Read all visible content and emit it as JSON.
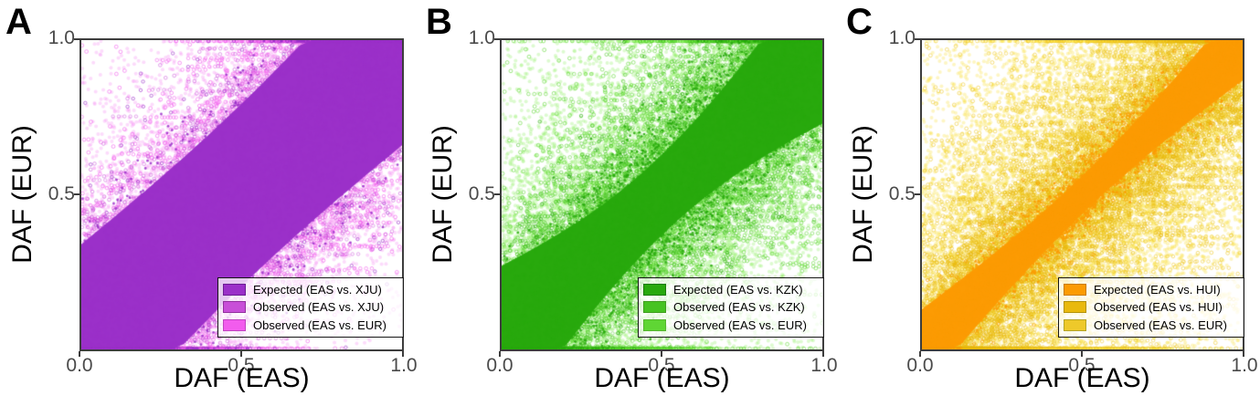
{
  "figure": {
    "background": "#ffffff"
  },
  "chart_data": [
    {
      "type": "scatter",
      "panel": "A",
      "xlabel": "DAF (EAS)",
      "ylabel": "DAF (EUR)",
      "xlim": [
        0,
        1
      ],
      "ylim": [
        0,
        1
      ],
      "xticks": [
        0.0,
        0.5,
        1.0
      ],
      "xticks_text": [
        "0.0",
        "0.5",
        "1.0"
      ],
      "yticks": [
        1.0,
        0.5
      ],
      "yticks_text": [
        "1.0",
        "0.5"
      ],
      "grid": false,
      "legend_position": "bottom-right",
      "series": [
        {
          "name": "Expected (EAS vs. XJU)",
          "style": "dense-diagonal-band",
          "color": "#9b30c9",
          "swatch_border": "#6b1d93",
          "band_halfwidth_corners": 0.34,
          "band_halfwidth_middle": 0.295,
          "edge_scatter_sigma": 0.17
        },
        {
          "name": "Observed (EAS vs. XJU)",
          "style": "open-circle-scatter",
          "color": "#c84fd8",
          "swatch_border": "#93309f",
          "relation": "y ~ x",
          "scatter_sigma": 0.2
        },
        {
          "name": "Observed (EAS vs. EUR)",
          "style": "open-circle-scatter",
          "color": "#f25ced",
          "swatch_border": "#c044c0",
          "relation": "y ~ x (diffuse)",
          "scatter_sigma": 0.26
        }
      ],
      "render": {
        "seed": 11,
        "wash_fill": "#f688f2",
        "wash_alpha": 0.3,
        "light_stroke": "#f25ced",
        "mid_stroke": "#c84fd8",
        "dark_fill": "#9b30c9",
        "sigma_light": 0.26,
        "sigma_mid": 0.2,
        "sigma_dark": 0.17,
        "uniform_frac_light": 0.07,
        "band_w_edge": 0.34,
        "band_w_mid": 0.295
      }
    },
    {
      "type": "scatter",
      "panel": "B",
      "xlabel": "DAF (EAS)",
      "ylabel": "DAF (EUR)",
      "xlim": [
        0,
        1
      ],
      "ylim": [
        0,
        1
      ],
      "xticks": [
        0.0,
        0.5,
        1.0
      ],
      "xticks_text": [
        "0.0",
        "0.5",
        "1.0"
      ],
      "yticks": [
        1.0,
        0.5
      ],
      "yticks_text": [
        "1.0",
        "0.5"
      ],
      "grid": false,
      "legend_position": "bottom-right",
      "series": [
        {
          "name": "Expected (EAS vs. KZK)",
          "style": "dense-diagonal-band",
          "color": "#28a90d",
          "swatch_border": "#1b7a08",
          "band_halfwidth_corners": 0.27,
          "band_halfwidth_middle": 0.13,
          "edge_scatter_sigma": 0.12
        },
        {
          "name": "Observed (EAS vs. KZK)",
          "style": "open-circle-scatter",
          "color": "#46c322",
          "swatch_border": "#3f9e1f",
          "relation": "y ~ x",
          "scatter_sigma": 0.18
        },
        {
          "name": "Observed (EAS vs. EUR)",
          "style": "open-circle-scatter",
          "color": "#5fd634",
          "swatch_border": "#55b52f",
          "relation": "y ~ x (diffuse)",
          "scatter_sigma": 0.3
        }
      ],
      "render": {
        "seed": 22,
        "wash_fill": "#8dee64",
        "wash_alpha": 0.3,
        "light_stroke": "#5fd634",
        "mid_stroke": "#46c322",
        "dark_fill": "#28a90d",
        "sigma_light": 0.3,
        "sigma_mid": 0.18,
        "sigma_dark": 0.12,
        "uniform_frac_light": 0.1,
        "band_w_edge": 0.27,
        "band_w_mid": 0.13
      }
    },
    {
      "type": "scatter",
      "panel": "C",
      "xlabel": "DAF (EAS)",
      "ylabel": "DAF (EUR)",
      "xlim": [
        0,
        1
      ],
      "ylim": [
        0,
        1
      ],
      "xticks": [
        0.0,
        0.5,
        1.0
      ],
      "xticks_text": [
        "0.0",
        "0.5",
        "1.0"
      ],
      "yticks": [
        1.0,
        0.5
      ],
      "yticks_text": [
        "1.0",
        "0.5"
      ],
      "grid": false,
      "legend_position": "bottom-right",
      "series": [
        {
          "name": "Expected (EAS vs. HUI)",
          "style": "dense-diagonal-band",
          "color": "#fc9b03",
          "swatch_border": "#c97c02",
          "band_halfwidth_corners": 0.13,
          "band_halfwidth_middle": 0.062,
          "edge_scatter_sigma": 0.05
        },
        {
          "name": "Observed (EAS vs. HUI)",
          "style": "open-circle-scatter",
          "color": "#e9b90d",
          "swatch_border": "#b3920a",
          "relation": "y ~ x",
          "scatter_sigma": 0.13
        },
        {
          "name": "Observed (EAS vs. EUR)",
          "style": "open-circle-scatter",
          "color": "#eec92a",
          "swatch_border": "#b3a428",
          "relation": "y ~ x (diffuse)",
          "scatter_sigma": 0.34
        }
      ],
      "render": {
        "seed": 33,
        "wash_fill": "#f8e24a",
        "wash_alpha": 0.33,
        "light_stroke": "#eec92a",
        "mid_stroke": "#e9b90d",
        "dark_fill": "#fc9b03",
        "sigma_light": 0.34,
        "sigma_mid": 0.13,
        "sigma_dark": 0.05,
        "uniform_frac_light": 0.12,
        "band_w_edge": 0.13,
        "band_w_mid": 0.062
      }
    }
  ]
}
